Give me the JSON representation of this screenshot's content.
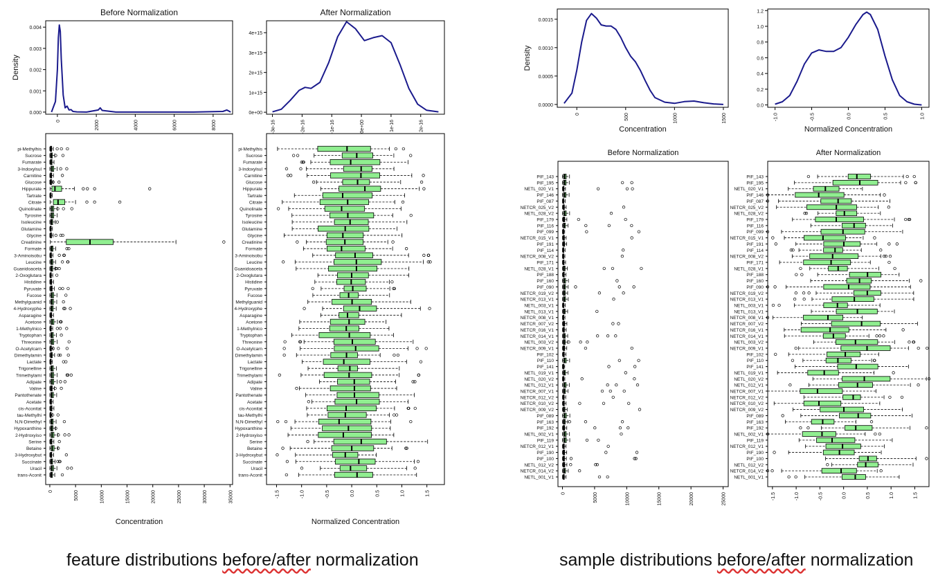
{
  "captions": {
    "left_prefix": "feature distributions ",
    "left_underlined": "before/after",
    "left_suffix": " normalization",
    "right_prefix": "sample distributions ",
    "right_underlined": "before/after",
    "right_suffix": " normalization"
  },
  "colors": {
    "density_line": "#1a1a8c",
    "box_fill": "#90ee90",
    "axis": "#000000"
  },
  "chart_data": [
    {
      "type": "line",
      "title": "Before Normalization",
      "xlabel": "",
      "ylabel": "Density",
      "xlim": [
        -600,
        9000
      ],
      "ylim": [
        -0.0001,
        0.0043
      ],
      "x_ticks": [
        0,
        2000,
        4000,
        6000,
        8000
      ],
      "y_ticks": [
        0.0,
        0.001,
        0.002,
        0.003,
        0.004
      ],
      "y_tick_labels": [
        "0.000",
        "0.001",
        "0.002",
        "0.003",
        "0.004"
      ],
      "x": [
        -300,
        -100,
        0,
        50,
        100,
        150,
        200,
        300,
        400,
        500,
        600,
        700,
        800,
        1000,
        1500,
        2100,
        2200,
        2300,
        3000,
        5000,
        7000,
        8500,
        8700,
        8900
      ],
      "y": [
        0.0,
        0.0005,
        0.002,
        0.0035,
        0.0041,
        0.0038,
        0.0025,
        0.0008,
        0.0002,
        0.00028,
        0.0001,
        0.00012,
        3e-05,
        1e-05,
        0.0,
        0.0001,
        0.0002,
        8e-05,
        0.0,
        0.0,
        0.0,
        3e-05,
        0.0001,
        0.0
      ]
    },
    {
      "type": "line",
      "title": "After Normalization",
      "xlabel": "",
      "ylabel": "",
      "xlim": [
        -3.2e-16,
        2.8e-16
      ],
      "ylim": [
        -100000000000000.0,
        4600000000000000.0
      ],
      "x_ticks": [
        -3e-16,
        -2e-16,
        -1e-16,
        0,
        1e-16,
        2e-16
      ],
      "x_tick_labels": [
        "-3e-16",
        "-2e-16",
        "-1e-16",
        "0e+00",
        "1e-16",
        "2e-16"
      ],
      "y_ticks": [
        0,
        1000000000000000.0,
        2000000000000000.0,
        3000000000000000.0,
        4000000000000000.0
      ],
      "y_tick_labels": [
        "0e+00",
        "1e+15",
        "2e+15",
        "3e+15",
        "4e+15"
      ],
      "x": [
        -3e-16,
        -2.7e-16,
        -2.4e-16,
        -2.1e-16,
        -1.9e-16,
        -1.7e-16,
        -1.4e-16,
        -1.1e-16,
        -8e-17,
        -5e-17,
        -2e-17,
        1e-17,
        4e-17,
        7e-17,
        1e-16,
        1.3e-16,
        1.6e-16,
        1.9e-16,
        2.2e-16,
        2.6e-16
      ],
      "y": [
        20000000000000.0,
        150000000000000.0,
        600000000000000.0,
        1100000000000000.0,
        1250000000000000.0,
        1200000000000000.0,
        1500000000000000.0,
        2500000000000000.0,
        3800000000000000.0,
        4550000000000000.0,
        4200000000000000.0,
        3600000000000000.0,
        3750000000000000.0,
        3850000000000000.0,
        3500000000000000.0,
        2400000000000000.0,
        1200000000000000.0,
        400000000000000.0,
        100000000000000.0,
        20000000000000.0
      ]
    },
    {
      "type": "line",
      "title": "",
      "xlabel": "Concentration",
      "ylabel": "Density",
      "xlim": [
        -200,
        1550
      ],
      "ylim": [
        -5e-05,
        0.00168
      ],
      "x_ticks": [
        0,
        500,
        1000,
        1500
      ],
      "y_ticks": [
        0.0,
        0.0005,
        0.001,
        0.0015
      ],
      "y_tick_labels": [
        "0.0000",
        "0.0005",
        "0.0010",
        "0.0015"
      ],
      "x": [
        -130,
        -50,
        0,
        50,
        100,
        150,
        200,
        250,
        300,
        350,
        400,
        450,
        500,
        550,
        600,
        650,
        700,
        750,
        800,
        900,
        1000,
        1100,
        1200,
        1300,
        1400,
        1500
      ],
      "y": [
        2e-05,
        0.0002,
        0.0006,
        0.0011,
        0.00148,
        0.0016,
        0.00152,
        0.0014,
        0.00138,
        0.00138,
        0.00132,
        0.00118,
        0.001,
        0.00085,
        0.00075,
        0.0006,
        0.00042,
        0.00025,
        0.00012,
        4e-05,
        2e-05,
        5e-05,
        6e-05,
        3e-05,
        1e-05,
        0.0
      ]
    },
    {
      "type": "line",
      "title": "",
      "xlabel": "Normalized Concentration",
      "ylabel": "",
      "xlim": [
        -1.1,
        1.1
      ],
      "ylim": [
        -0.03,
        1.22
      ],
      "x_ticks": [
        -1.0,
        -0.5,
        0.0,
        0.5,
        1.0
      ],
      "x_tick_labels": [
        "-1.0",
        "-0.5",
        "0.0",
        "0.5",
        "1.0"
      ],
      "y_ticks": [
        0.0,
        0.2,
        0.4,
        0.6,
        0.8,
        1.0,
        1.2
      ],
      "y_tick_labels": [
        "0.0",
        "0.2",
        "0.4",
        "0.6",
        "0.8",
        "1.0",
        "1.2"
      ],
      "x": [
        -1.0,
        -0.9,
        -0.8,
        -0.7,
        -0.6,
        -0.5,
        -0.4,
        -0.3,
        -0.2,
        -0.1,
        0.0,
        0.1,
        0.2,
        0.25,
        0.3,
        0.4,
        0.5,
        0.6,
        0.7,
        0.8,
        0.9,
        1.0
      ],
      "y": [
        0.01,
        0.04,
        0.12,
        0.3,
        0.52,
        0.66,
        0.7,
        0.68,
        0.68,
        0.73,
        0.86,
        1.02,
        1.15,
        1.18,
        1.15,
        0.96,
        0.62,
        0.32,
        0.12,
        0.04,
        0.01,
        0.0
      ]
    },
    {
      "type": "box",
      "title": "",
      "xlabel": "Concentration",
      "xlim": [
        -800,
        35500
      ],
      "x_ticks": [
        0,
        5000,
        10000,
        15000,
        20000,
        25000,
        30000,
        35000
      ],
      "categories": [
        "pi-Methylhis",
        "Sucrose",
        "Fumarate",
        "3-Indoxylsul",
        "Carnitine",
        "Glucose",
        "Hippurate",
        "Tartrate",
        "Citrate",
        "Quinolinate",
        "Tyrosine",
        "Isoleucine",
        "Glutamine",
        "Glycine",
        "Creatinine",
        "Formate",
        "3-Aminoisobu",
        "Leucine",
        "Guanidoaceta",
        "2-Oxoglutara",
        "Histidine",
        "Pyruvate",
        "Fucose",
        "Methylguanid",
        "4-Hydroxyphe",
        "Asparagine",
        "Acetone",
        "1-Methylnico",
        "Tryptophan",
        "Threonine",
        "O-Acetylcarn",
        "Dimethylamin",
        "Lactate",
        "Trigonelline",
        "Trimethylami",
        "Adipate",
        "Valine",
        "Pantothenate",
        "Acetate",
        "cis-Aconitat",
        "tau-Methylhi",
        "N,N-Dimethyl",
        "Hypoxanthine",
        "2-Hydroxyiso",
        "Serine",
        "Betaine",
        "3-Hydroxybut",
        "Succinate",
        "Uracil",
        "trans-Aconit"
      ]
    },
    {
      "type": "box",
      "title": "",
      "xlabel": "Normalized Concentration",
      "xlim": [
        -1.7,
        1.85
      ],
      "x_ticks": [
        -1.5,
        -1.0,
        -0.5,
        0.0,
        0.5,
        1.0,
        1.5
      ],
      "x_tick_labels": [
        "-1.5",
        "-1.0",
        "-0.5",
        "0.0",
        "0.5",
        "1.0",
        "1.5"
      ],
      "categories": [
        "pi-Methylhis",
        "Sucrose",
        "Fumarate",
        "3-Indoxylsul",
        "Carnitine",
        "Glucose",
        "Hippurate",
        "Tartrate",
        "Citrate",
        "Quinolinate",
        "Tyrosine",
        "Isoleucine",
        "Glutamine",
        "Glycine",
        "Creatinine",
        "Formate",
        "3-Aminoisobu",
        "Leucine",
        "Guanidoaceta",
        "2-Oxoglutara",
        "Histidine",
        "Pyruvate",
        "Fucose",
        "Methylguanid",
        "4-Hydroxyphe",
        "Asparagine",
        "Acetone",
        "1-Methylnico",
        "Tryptophan",
        "Threonine",
        "O-Acetylcarn",
        "Dimethylamin",
        "Lactate",
        "Trigonelline",
        "Trimethylami",
        "Adipate",
        "Valine",
        "Pantothenate",
        "Acetate",
        "cis-Aconitat",
        "tau-Methylhi",
        "N,N-Dimethyl",
        "Hypoxanthine",
        "2-Hydroxyiso",
        "Serine",
        "Betaine",
        "3-Hydroxybut",
        "Succinate",
        "Uracil",
        "trans-Aconit"
      ]
    },
    {
      "type": "box",
      "title": "Before Normalization",
      "xlabel": "",
      "xlim": [
        -700,
        25800
      ],
      "x_ticks": [
        0,
        5000,
        10000,
        15000,
        20000,
        25000
      ],
      "categories": [
        "PIF_143",
        "PIF_195",
        "NETL_020_V1",
        "PIF_146",
        "PIF_087",
        "NETCR_025_V2",
        "NETL_028_V2",
        "PIF_179",
        "PIF_116",
        "PIF_099",
        "NETCR_015_V1",
        "PIF_191",
        "PIF_114",
        "NETCR_008_V2",
        "PIF_171",
        "NETL_028_V1",
        "PIF_188",
        "PIF_160",
        "PIF_090",
        "NETCR_019_V2",
        "NETCR_013_V1",
        "NETL_003_V1",
        "NETL_013_V1",
        "NETCR_008_V1",
        "NETCR_007_V2",
        "NETCR_016_V1",
        "NETCR_014_V1",
        "NETL_003_V2",
        "NETCR_009_V1",
        "PIF_102",
        "PIF_110",
        "PIF_141",
        "NETL_019_V1",
        "NETL_020_V2",
        "NETL_012_V1",
        "NETCR_007_V1",
        "NETCR_012_V2",
        "NETCR_010_V2",
        "NETCR_009_V2",
        "PIF_089",
        "PIF_163",
        "PIF_192",
        "NETL_002_V1",
        "PIF_119",
        "NETCR_012_V1",
        "PIF_190",
        "PIF_100",
        "NETL_012_V2",
        "NETCR_014_V2",
        "NETL_001_V1"
      ]
    },
    {
      "type": "box",
      "title": "After Normalization",
      "xlabel": "",
      "xlim": [
        -1.6,
        1.8
      ],
      "x_ticks": [
        -1.5,
        -1.0,
        -0.5,
        0.0,
        0.5,
        1.0,
        1.5
      ],
      "x_tick_labels": [
        "-1.5",
        "-1.0",
        "-0.5",
        "0.0",
        "0.5",
        "1.0",
        "1.5"
      ],
      "categories": [
        "PIF_143",
        "PIF_195",
        "NETL_020_V1",
        "PIF_146",
        "PIF_087",
        "NETCR_025_V2",
        "NETL_028_V2",
        "PIF_179",
        "PIF_116",
        "PIF_099",
        "NETCR_015_V1",
        "PIF_191",
        "PIF_114",
        "NETCR_008_V2",
        "PIF_171",
        "NETL_028_V1",
        "PIF_188",
        "PIF_160",
        "PIF_090",
        "NETCR_019_V2",
        "NETCR_013_V1",
        "NETL_003_V1",
        "NETL_013_V1",
        "NETCR_008_V1",
        "NETCR_007_V2",
        "NETCR_016_V1",
        "NETCR_014_V1",
        "NETL_003_V2",
        "NETCR_009_V1",
        "PIF_102",
        "PIF_110",
        "PIF_141",
        "NETL_019_V1",
        "NETL_020_V2",
        "NETL_012_V1",
        "NETCR_007_V1",
        "NETCR_012_V2",
        "NETCR_010_V2",
        "NETCR_009_V2",
        "PIF_089",
        "PIF_163",
        "PIF_192",
        "NETL_002_V1",
        "PIF_119",
        "NETCR_012_V1",
        "PIF_190",
        "PIF_100",
        "NETL_012_V2",
        "NETCR_014_V2",
        "NETL_001_V1"
      ]
    }
  ]
}
